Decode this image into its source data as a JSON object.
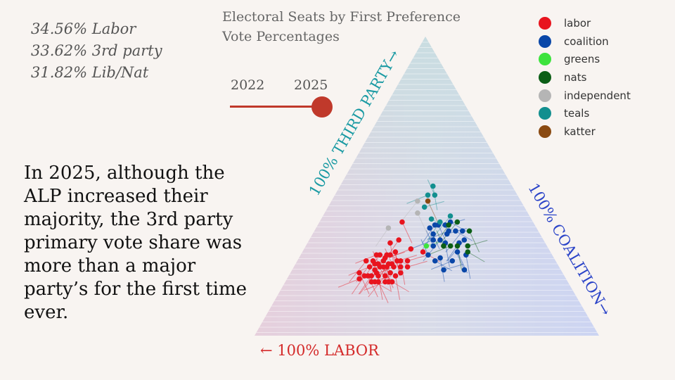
{
  "stats": [
    "34.56% Labor",
    "33.62% 3rd party",
    "31.82% Lib/Nat"
  ],
  "title": "Electoral Seats by First Preference Vote Percentages",
  "slider": {
    "years": [
      "2022",
      "2025"
    ],
    "selected": "2025"
  },
  "annotation": "In 2025, although the ALP increased their majority, the 3rd party primary vote share was more than a major party’s for the first time ever.",
  "colors": {
    "labor": "#e8141e",
    "coalition": "#0a47a8",
    "greens": "#3de33d",
    "nats": "#0b5e16",
    "independent": "#b5b5b5",
    "teals": "#128f8f",
    "katter": "#8a4a12",
    "slider": "#c0392b"
  },
  "chart_data": {
    "type": "scatter",
    "subtype": "ternary",
    "title": "Electoral Seats by First Preference Vote Percentages",
    "axes": {
      "third_party": "100% THIRD PARTY→",
      "coalition": "100% COALITION→",
      "labor": "← 100% LABOR"
    },
    "legend": {
      "position": "top-right",
      "entries": [
        "labor",
        "coalition",
        "greens",
        "nats",
        "independent",
        "teals",
        "katter"
      ]
    },
    "point_fields": [
      "labor_pct",
      "coalition_pct",
      "third_pct"
    ],
    "series": [
      {
        "name": "labor",
        "values": [
          [
            50,
            25,
            25
          ],
          [
            52,
            24,
            24
          ],
          [
            55,
            22,
            23
          ],
          [
            53,
            23,
            24
          ],
          [
            50,
            27,
            23
          ],
          [
            48,
            28,
            24
          ],
          [
            49,
            25,
            26
          ],
          [
            54,
            25,
            21
          ],
          [
            56,
            24,
            20
          ],
          [
            57,
            23,
            20
          ],
          [
            51,
            22,
            27
          ],
          [
            47,
            26,
            27
          ],
          [
            45,
            30,
            25
          ],
          [
            46,
            31,
            23
          ],
          [
            44,
            33,
            23
          ],
          [
            52,
            28,
            20
          ],
          [
            58,
            22,
            20
          ],
          [
            55,
            27,
            18
          ],
          [
            53,
            29,
            18
          ],
          [
            51,
            31,
            18
          ],
          [
            49,
            31,
            20
          ],
          [
            47,
            32,
            21
          ],
          [
            43,
            32,
            25
          ],
          [
            48,
            25,
            27
          ],
          [
            50,
            23,
            27
          ],
          [
            59,
            20,
            21
          ],
          [
            60,
            21,
            19
          ],
          [
            56,
            26,
            18
          ],
          [
            54,
            26,
            20
          ],
          [
            52,
            30,
            18
          ],
          [
            57,
            25,
            18
          ],
          [
            55,
            20,
            25
          ],
          [
            42,
            26,
            32
          ],
          [
            38,
            24,
            38
          ],
          [
            40,
            31,
            29
          ],
          [
            37,
            35,
            28
          ],
          [
            45,
            24,
            31
          ],
          [
            50,
            29,
            21
          ],
          [
            46,
            29,
            25
          ],
          [
            53,
            22,
            25
          ],
          [
            49,
            27,
            24
          ],
          [
            51,
            26,
            23
          ],
          [
            48,
            29,
            23
          ],
          [
            54,
            24,
            22
          ],
          [
            45,
            27,
            28
          ],
          [
            52,
            25,
            23
          ]
        ]
      },
      {
        "name": "coalition",
        "values": [
          [
            27,
            39,
            34
          ],
          [
            30,
            38,
            32
          ],
          [
            25,
            44,
            31
          ],
          [
            28,
            35,
            37
          ],
          [
            32,
            36,
            32
          ],
          [
            24,
            41,
            35
          ],
          [
            29,
            40,
            31
          ],
          [
            33,
            37,
            30
          ],
          [
            26,
            37,
            37
          ],
          [
            22,
            43,
            35
          ],
          [
            31,
            35,
            34
          ],
          [
            27,
            45,
            28
          ],
          [
            30,
            45,
            25
          ],
          [
            35,
            40,
            25
          ],
          [
            25,
            48,
            27
          ],
          [
            28,
            50,
            22
          ],
          [
            34,
            44,
            22
          ],
          [
            23,
            45,
            32
          ],
          [
            29,
            34,
            37
          ],
          [
            31,
            33,
            36
          ],
          [
            26,
            39,
            35
          ],
          [
            24,
            38,
            38
          ],
          [
            33,
            41,
            26
          ],
          [
            36,
            37,
            27
          ]
        ]
      },
      {
        "name": "greens",
        "values": [
          [
            35,
            35,
            30
          ]
        ]
      },
      {
        "name": "nats",
        "values": [
          [
            22,
            40,
            38
          ],
          [
            25,
            38,
            37
          ],
          [
            20,
            45,
            35
          ],
          [
            28,
            42,
            30
          ],
          [
            24,
            48,
            28
          ],
          [
            26,
            44,
            30
          ],
          [
            30,
            40,
            30
          ],
          [
            23,
            47,
            30
          ]
        ]
      },
      {
        "name": "independent",
        "values": [
          [
            30,
            25,
            45
          ],
          [
            43,
            21,
            36
          ],
          [
            32,
            27,
            41
          ]
        ]
      },
      {
        "name": "teals",
        "values": [
          [
            26,
            27,
            47
          ],
          [
            29,
            32,
            39
          ],
          [
            23,
            27,
            50
          ],
          [
            24,
            29,
            47
          ],
          [
            29,
            28,
            43
          ],
          [
            23,
            37,
            40
          ],
          [
            27,
            35,
            38
          ]
        ]
      },
      {
        "name": "katter",
        "values": [
          [
            27,
            28,
            45
          ]
        ]
      }
    ]
  }
}
